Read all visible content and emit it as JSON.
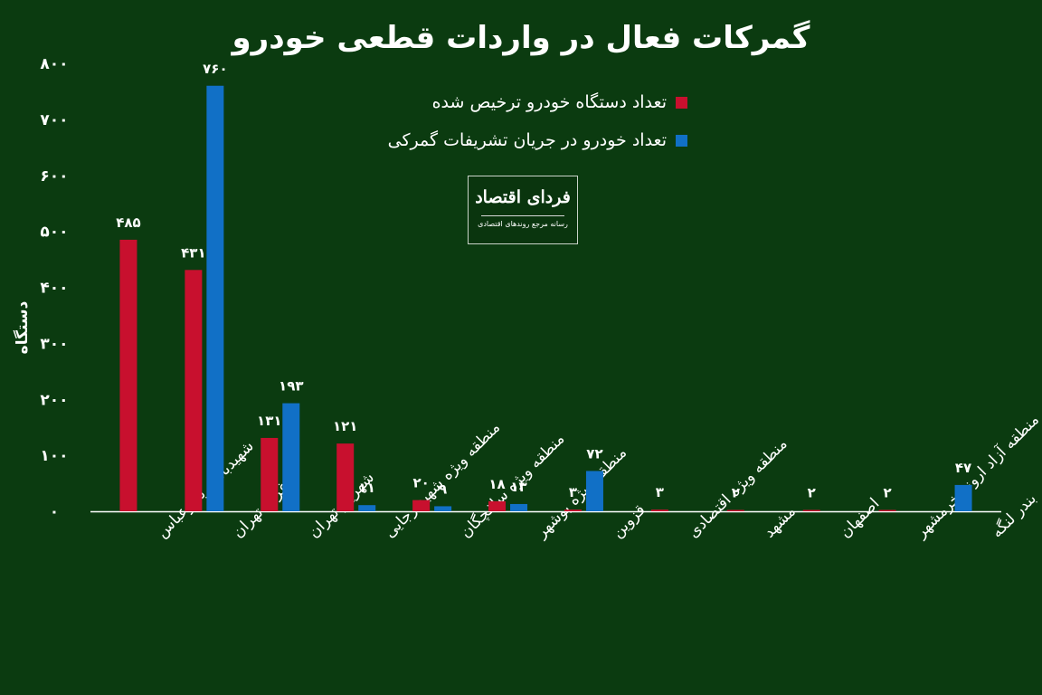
{
  "title": "گمرکات فعال در واردات قطعی خودرو",
  "logo": {
    "main": "فردای اقتصاد",
    "sub": "رسانه مرجع روندهای اقتصادی"
  },
  "colors": {
    "background": "#0b3b10",
    "red": "#c8102e",
    "blue": "#1170c6",
    "axis": "#ffffff"
  },
  "chart_data": {
    "type": "bar",
    "title": "گمرکات فعال در واردات قطعی خودرو",
    "ylabel": "دستگاه",
    "xlabel": "",
    "ylim": [
      0,
      800
    ],
    "yticks": [
      0,
      100,
      200,
      300,
      400,
      500,
      600,
      700,
      800
    ],
    "ytick_labels": [
      "۰",
      "۱۰۰",
      "۲۰۰",
      "۳۰۰",
      "۴۰۰",
      "۵۰۰",
      "۶۰۰",
      "۷۰۰",
      "۸۰۰"
    ],
    "grid": false,
    "legend_position": "top-center",
    "categories": [
      "شهیدباهنر بندرعباس",
      "غرب تهران",
      "شهریار تهران",
      "منطقه ویژه شهید رجایی",
      "منطقه ویژه سلفچگان",
      "منطقه ویژه بوشهر",
      "قزوین",
      "منطقه ویژه اقتصادی",
      "مشهد",
      "اصفهان",
      "منطقه آزاد اروند-خرمشهر",
      "بندر لنگه"
    ],
    "series": [
      {
        "name": "تعداد دستگاه خودرو ترخیص شده",
        "color": "#c8102e",
        "values": [
          485,
          431,
          131,
          121,
          20,
          18,
          3,
          3,
          2,
          2,
          2,
          null
        ],
        "labels": [
          "۴۸۵",
          "۴۳۱",
          "۱۳۱",
          "۱۲۱",
          "۲۰",
          "۱۸",
          "۳",
          "۳",
          "۲",
          "۲",
          "۲",
          ""
        ]
      },
      {
        "name": "تعداد خودرو در جریان تشریفات گمرکی",
        "color": "#1170c6",
        "values": [
          null,
          760,
          193,
          11,
          9,
          13,
          72,
          null,
          null,
          null,
          null,
          47
        ],
        "labels": [
          "",
          "۷۶۰",
          "۱۹۳",
          "۱۱",
          "۹",
          "۱۳",
          "۷۲",
          "",
          "",
          "",
          "",
          "۴۷"
        ]
      }
    ]
  }
}
